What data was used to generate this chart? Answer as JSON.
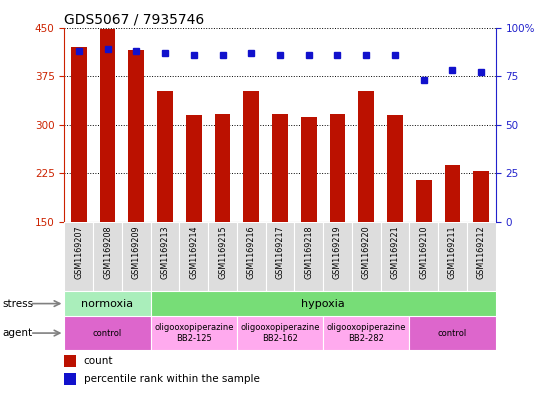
{
  "title": "GDS5067 / 7935746",
  "samples": [
    "GSM1169207",
    "GSM1169208",
    "GSM1169209",
    "GSM1169213",
    "GSM1169214",
    "GSM1169215",
    "GSM1169216",
    "GSM1169217",
    "GSM1169218",
    "GSM1169219",
    "GSM1169220",
    "GSM1169221",
    "GSM1169210",
    "GSM1169211",
    "GSM1169212"
  ],
  "counts": [
    420,
    447,
    415,
    352,
    315,
    316,
    352,
    316,
    312,
    316,
    352,
    315,
    215,
    238,
    228
  ],
  "percentiles": [
    88,
    89,
    88,
    87,
    86,
    86,
    87,
    86,
    86,
    86,
    86,
    86,
    73,
    78,
    77
  ],
  "ylim_left": [
    150,
    450
  ],
  "ylim_right": [
    0,
    100
  ],
  "yticks_left": [
    150,
    225,
    300,
    375,
    450
  ],
  "yticks_right": [
    0,
    25,
    50,
    75,
    100
  ],
  "bar_color": "#bb1100",
  "dot_color": "#1111cc",
  "left_axis_color": "#cc2200",
  "right_axis_color": "#2222cc",
  "stress_labels": [
    {
      "text": "normoxia",
      "start": 0,
      "end": 3,
      "color": "#aaeebb"
    },
    {
      "text": "hypoxia",
      "start": 3,
      "end": 15,
      "color": "#77dd77"
    }
  ],
  "agent_labels": [
    {
      "text": "control",
      "start": 0,
      "end": 3,
      "color": "#dd66cc"
    },
    {
      "text": "oligooxopiperazine\nBB2-125",
      "start": 3,
      "end": 6,
      "color": "#ffaaee"
    },
    {
      "text": "oligooxopiperazine\nBB2-162",
      "start": 6,
      "end": 9,
      "color": "#ffaaee"
    },
    {
      "text": "oligooxopiperazine\nBB2-282",
      "start": 9,
      "end": 12,
      "color": "#ffaaee"
    },
    {
      "text": "control",
      "start": 12,
      "end": 15,
      "color": "#dd66cc"
    }
  ],
  "stress_row_label": "stress",
  "agent_row_label": "agent",
  "legend_count_label": "count",
  "legend_pct_label": "percentile rank within the sample",
  "bg_color": "#ffffff",
  "tick_bg_color": "#dddddd"
}
